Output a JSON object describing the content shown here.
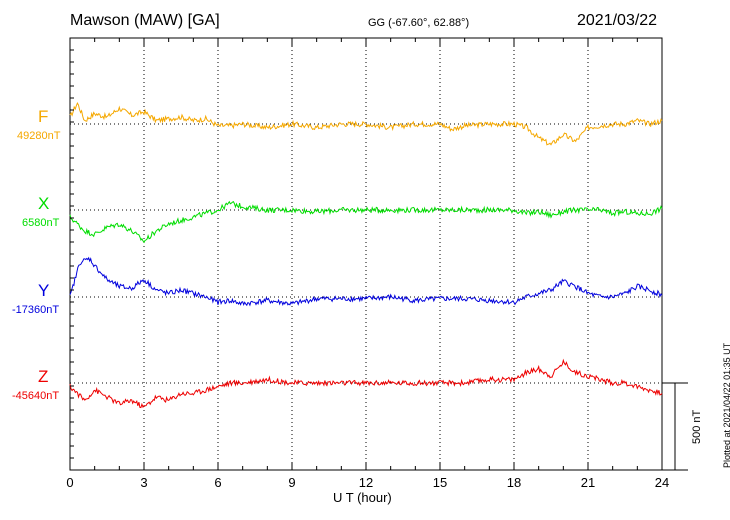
{
  "header": {
    "station": "Mawson (MAW)  [GA]",
    "coords": "GG (-67.60°,  62.88°)",
    "date": "2021/03/22"
  },
  "footer": {
    "plotted": "Plotted at 2021/04/22 01:35 UT"
  },
  "scale": {
    "label": "500 nT"
  },
  "colors": {
    "F": "#f5a800",
    "X": "#00dd00",
    "Y": "#0000dd",
    "Z": "#ee0000"
  },
  "chart_data": {
    "type": "line",
    "xlabel": "U T (hour)",
    "xlim": [
      0,
      24
    ],
    "xticks": [
      "0",
      "3",
      "6",
      "9",
      "12",
      "15",
      "18",
      "21",
      "24"
    ],
    "channels": [
      {
        "name": "F",
        "baseline": "49280nT",
        "color": "#f5a800",
        "x": [
          0,
          0.3,
          0.6,
          1,
          1.5,
          2,
          2.5,
          3,
          3.5,
          4,
          4.5,
          5,
          5.5,
          6,
          6.5,
          7,
          8,
          9,
          10,
          11,
          12,
          13,
          14,
          15,
          15.5,
          16,
          17,
          18,
          18.5,
          19,
          19.5,
          20,
          20.5,
          21,
          21.5,
          22,
          22.5,
          23,
          23.5,
          24
        ],
        "y": [
          40,
          120,
          20,
          60,
          40,
          90,
          50,
          70,
          20,
          30,
          40,
          20,
          30,
          -10,
          -10,
          0,
          -20,
          0,
          -20,
          0,
          0,
          -20,
          0,
          0,
          -30,
          -10,
          0,
          0,
          -20,
          -80,
          -120,
          -60,
          -100,
          -20,
          -10,
          0,
          0,
          20,
          0,
          20
        ]
      },
      {
        "name": "X",
        "baseline": "6580nT",
        "color": "#00dd00",
        "x": [
          0,
          0.3,
          0.6,
          1,
          1.5,
          2,
          2.5,
          3,
          3.5,
          4,
          4.5,
          5,
          5.5,
          6,
          6.5,
          7,
          8,
          9,
          10,
          11,
          12,
          13,
          14,
          15,
          16,
          17,
          18,
          18.5,
          19,
          19.5,
          20,
          20.5,
          21,
          21.5,
          22,
          22.5,
          23,
          23.5,
          24
        ],
        "y": [
          -40,
          -80,
          -120,
          -140,
          -100,
          -80,
          -120,
          -180,
          -120,
          -80,
          -60,
          -40,
          -20,
          0,
          40,
          20,
          0,
          0,
          -10,
          0,
          0,
          0,
          0,
          0,
          0,
          0,
          0,
          -20,
          -10,
          -30,
          -10,
          0,
          0,
          0,
          -20,
          -10,
          -20,
          -20,
          10
        ]
      },
      {
        "name": "Y",
        "baseline": "-17360nT",
        "color": "#0000dd",
        "x": [
          0,
          0.4,
          0.8,
          1,
          1.5,
          2,
          2.5,
          3,
          3.5,
          4,
          4.5,
          5,
          5.5,
          6,
          6.5,
          7,
          8,
          9,
          10,
          11,
          12,
          13,
          14,
          15,
          16,
          17,
          18,
          18.5,
          19,
          19.5,
          20,
          20.5,
          21,
          21.5,
          22,
          22.5,
          23,
          23.5,
          24
        ],
        "y": [
          0,
          200,
          220,
          180,
          100,
          60,
          50,
          100,
          40,
          20,
          40,
          20,
          0,
          -30,
          -20,
          -40,
          -20,
          -40,
          -10,
          -10,
          -10,
          0,
          -20,
          -10,
          -10,
          -20,
          -30,
          0,
          20,
          40,
          90,
          60,
          20,
          0,
          0,
          20,
          60,
          40,
          10
        ]
      },
      {
        "name": "Z",
        "baseline": "-45640nT",
        "color": "#ee0000",
        "x": [
          0,
          0.3,
          0.6,
          1,
          1.5,
          2,
          2.5,
          3,
          3.5,
          4,
          4.5,
          5,
          5.5,
          6,
          6.5,
          7,
          8,
          9,
          10,
          11,
          12,
          13,
          14,
          15,
          16,
          17,
          18,
          18.5,
          19,
          19.5,
          20,
          20.5,
          21,
          21.5,
          22,
          22.5,
          23,
          23.5,
          24
        ],
        "y": [
          -20,
          -60,
          -100,
          -40,
          -80,
          -120,
          -100,
          -140,
          -80,
          -100,
          -60,
          -60,
          -40,
          -20,
          0,
          0,
          20,
          0,
          0,
          0,
          0,
          0,
          0,
          0,
          0,
          20,
          20,
          60,
          80,
          40,
          120,
          60,
          40,
          20,
          0,
          0,
          -20,
          -40,
          -60
        ]
      }
    ],
    "yscale_nT": 500
  }
}
